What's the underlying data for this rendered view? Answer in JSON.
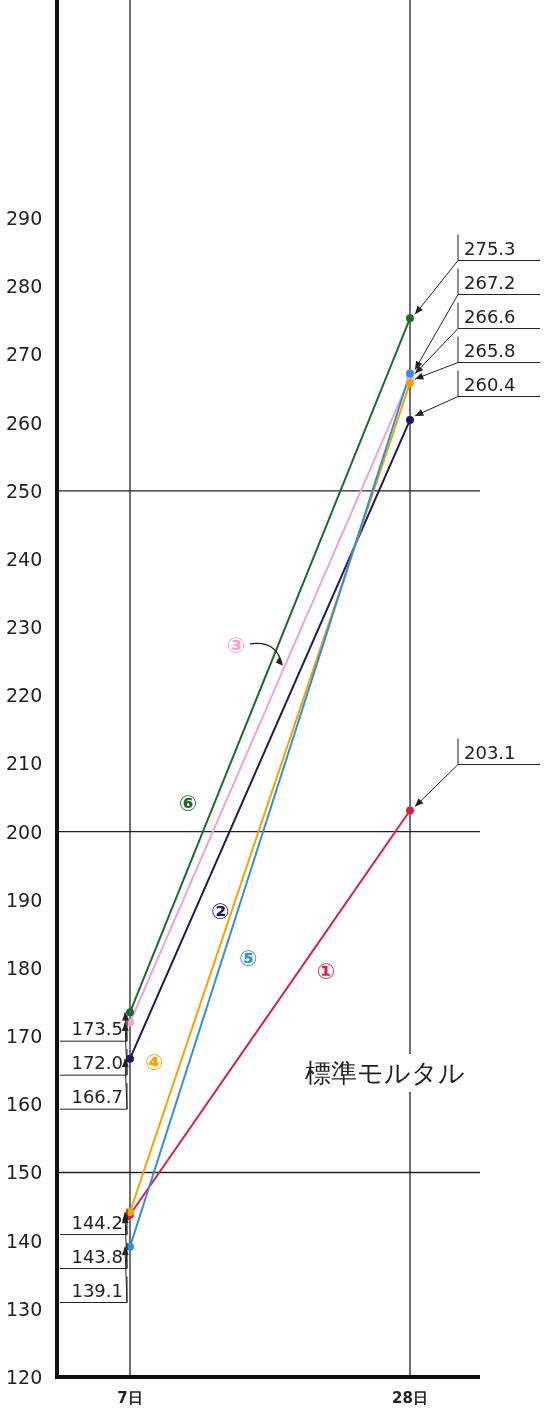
{
  "chart_data": {
    "type": "line",
    "categories": [
      "7日",
      "28日"
    ],
    "series": [
      {
        "name": "①",
        "color": "#d81e4a",
        "values": [
          143.8,
          203.1
        ],
        "value_labels": [
          "143.8",
          "203.1"
        ]
      },
      {
        "name": "②",
        "color": "#1f1a5e",
        "values": [
          166.7,
          260.4
        ],
        "value_labels": [
          "166.7",
          "260.4"
        ]
      },
      {
        "name": "③",
        "color": "#f2a2cf",
        "values": [
          172.0,
          266.6
        ],
        "value_labels": [
          "172.0",
          "266.6"
        ]
      },
      {
        "name": "④",
        "color": "#f5a300",
        "values": [
          144.2,
          265.8
        ],
        "value_labels": [
          "144.2",
          "265.8"
        ]
      },
      {
        "name": "⑤",
        "color": "#2f8fe0",
        "values": [
          139.1,
          267.2
        ],
        "value_labels": [
          "139.1",
          "267.2"
        ]
      },
      {
        "name": "⑥",
        "color": "#1e6b2a",
        "values": [
          173.5,
          275.3
        ],
        "value_labels": [
          "173.5",
          "275.3"
        ]
      }
    ],
    "ylim": [
      120,
      322
    ],
    "yticks": [
      120,
      130,
      140,
      150,
      160,
      170,
      180,
      190,
      200,
      210,
      220,
      230,
      240,
      250,
      260,
      270,
      280,
      290
    ],
    "grid": "x",
    "marker": "circle",
    "line_style": "solid",
    "ref_lines": [
      {
        "axis": "y",
        "value": 150
      },
      {
        "axis": "y",
        "value": 200
      },
      {
        "axis": "y",
        "value": 250
      }
    ],
    "annotations": [
      "標準モルタル"
    ]
  }
}
